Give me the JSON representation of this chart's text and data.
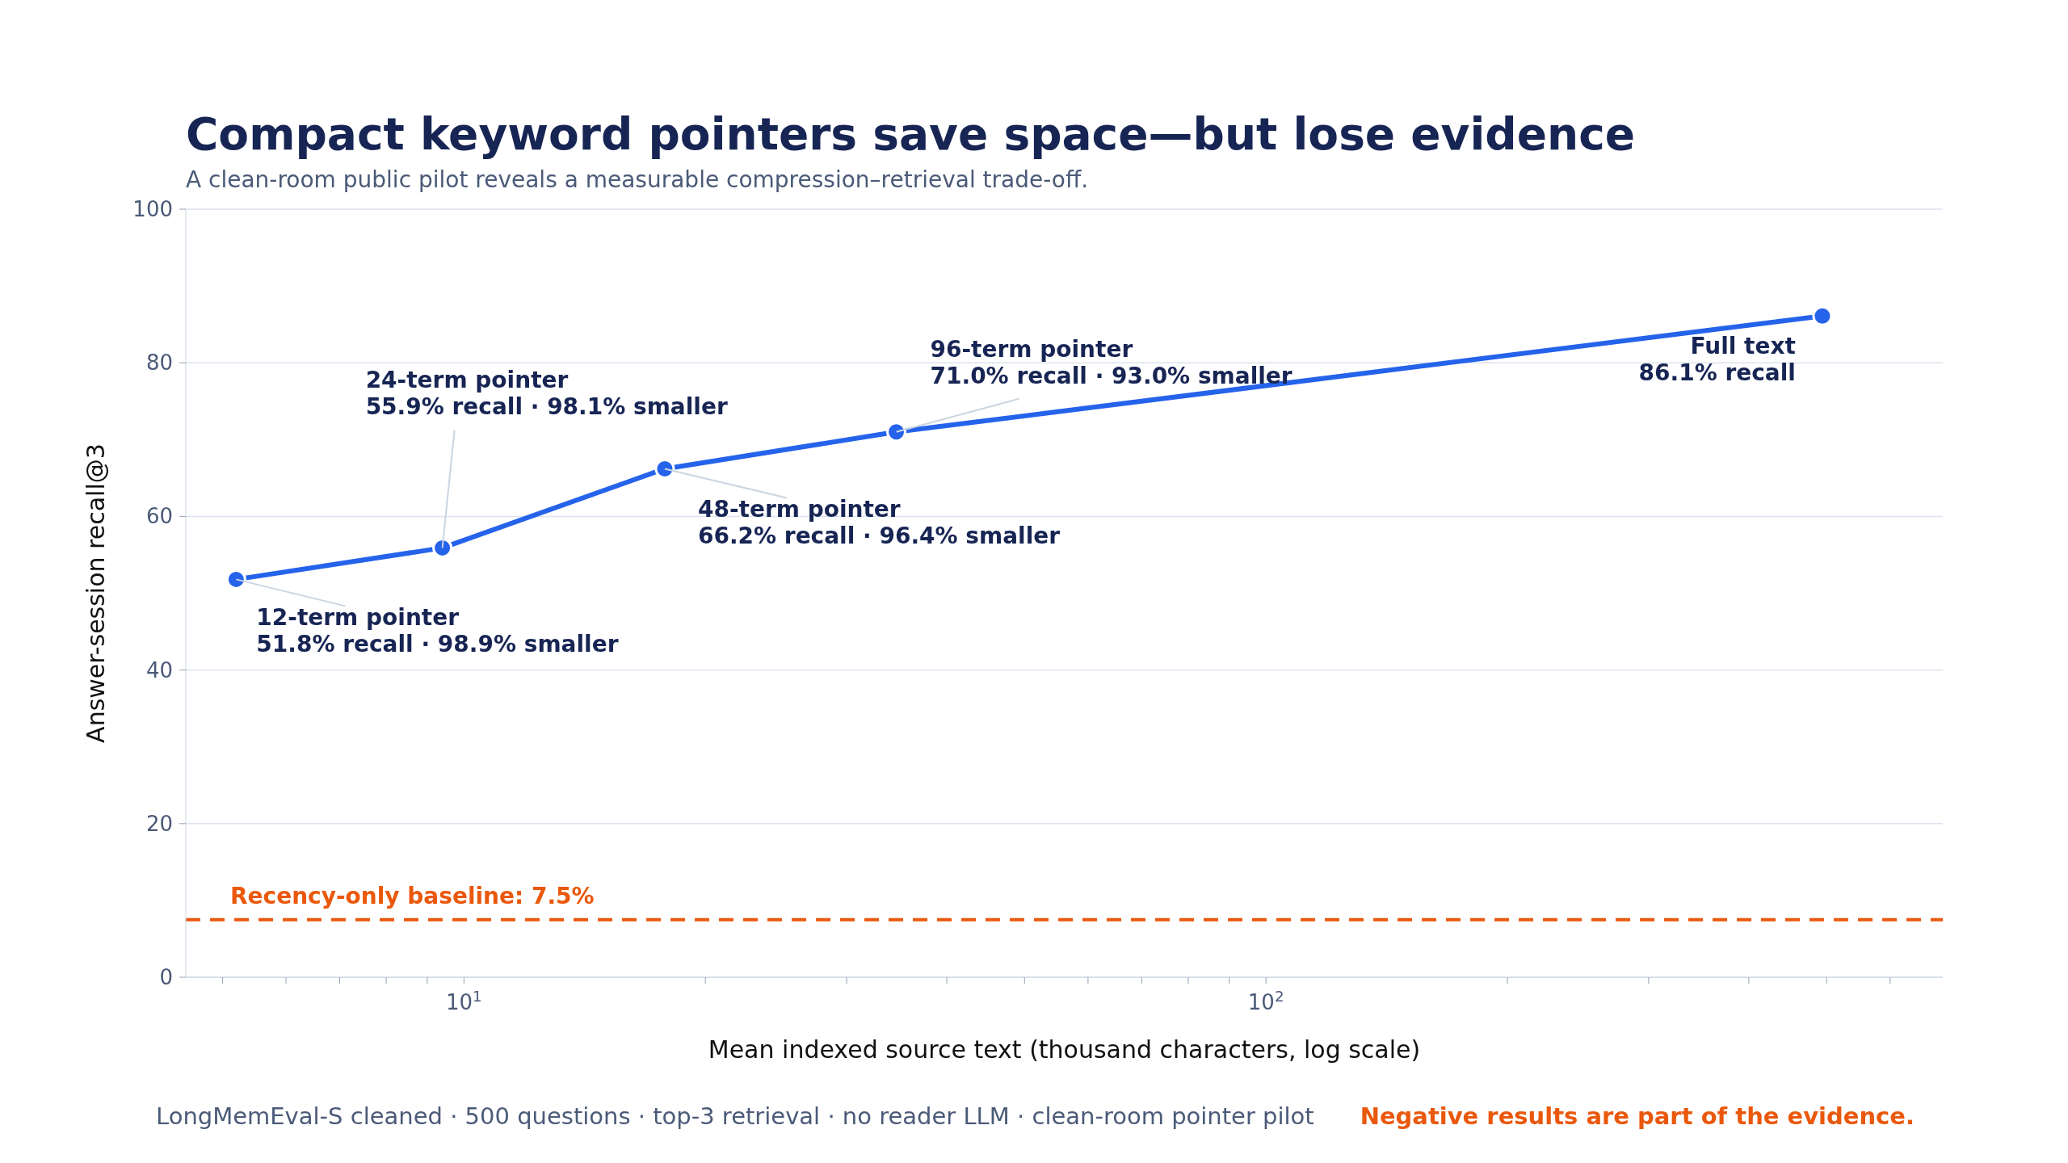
{
  "chart_data": {
    "type": "line",
    "title": "Compact keyword pointers save space—but lose evidence",
    "subtitle": "A clean-room public pilot reveals a measurable compression–retrieval trade-off.",
    "xlabel": "Mean indexed source text (thousand characters, log scale)",
    "ylabel": "Answer-session recall@3",
    "x": [
      5.2,
      9.4,
      17.8,
      34.6,
      494
    ],
    "series": [
      {
        "color": "#2563eb",
        "values": [
          51.8,
          55.9,
          66.2,
          71.0,
          86.1
        ]
      }
    ],
    "log": "x",
    "xlim": [
      4.5,
      698
    ],
    "xticks": [
      {
        "value": 5,
        "label": null
      },
      {
        "value": 6,
        "label": null
      },
      {
        "value": 7,
        "label": null
      },
      {
        "value": 8,
        "label": null
      },
      {
        "value": 9,
        "label": null
      },
      {
        "value": 10,
        "label": "10$^{1}$"
      },
      {
        "value": 20,
        "label": null
      },
      {
        "value": 30,
        "label": null
      },
      {
        "value": 40,
        "label": null
      },
      {
        "value": 50,
        "label": null
      },
      {
        "value": 60,
        "label": null
      },
      {
        "value": 70,
        "label": null
      },
      {
        "value": 80,
        "label": null
      },
      {
        "value": 90,
        "label": null
      },
      {
        "value": 100,
        "label": "10$^{2}$"
      },
      {
        "value": 200,
        "label": null
      },
      {
        "value": 300,
        "label": null
      },
      {
        "value": 400,
        "label": null
      },
      {
        "value": 500,
        "label": null
      },
      {
        "value": 600,
        "label": null
      }
    ],
    "ylim": [
      0,
      100
    ],
    "yticks": [
      0,
      20,
      40,
      60,
      80,
      100
    ],
    "grid": "y",
    "marker": "circle",
    "line_style": "solid",
    "ref_lines": [
      {
        "axis": "y",
        "value": 7.5,
        "label": "Recency-only baseline: 7.5%",
        "color": "#ea580c",
        "line_style": "dashed"
      }
    ],
    "annotations": [
      {
        "text": "12-term pointer\n51.8% recall · 98.9% smaller",
        "x": 5.2,
        "y": 51.8
      },
      {
        "text": "24-term pointer\n55.9% recall · 98.1% smaller",
        "x": 9.4,
        "y": 55.9
      },
      {
        "text": "48-term pointer\n66.2% recall · 96.4% smaller",
        "x": 17.8,
        "y": 66.2
      },
      {
        "text": "96-term pointer\n71.0% recall · 93.0% smaller",
        "x": 34.6,
        "y": 71.0
      },
      {
        "text": "Full text\n86.1% recall",
        "x": 494,
        "y": 86.1
      },
      "LongMemEval-S cleaned · 500 questions · top-3 retrieval · no reader LLM · clean-room pointer pilot",
      "Negative results are part of the evidence."
    ]
  }
}
